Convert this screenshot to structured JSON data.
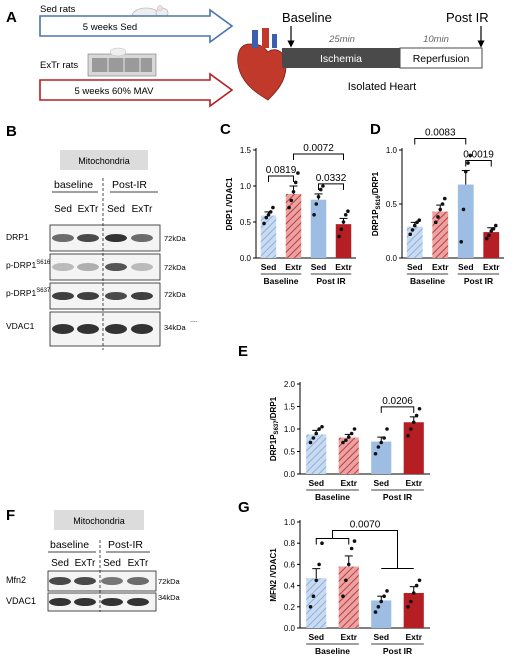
{
  "colors": {
    "sed": "#9dbde3",
    "sed_light": "#c9dbf1",
    "extr_dark": "#b51f24",
    "extr_light": "#d97070",
    "bar_stroke": "#6a8fc0"
  },
  "panelA": {
    "label": "A",
    "sed_rats": "Sed rats",
    "sed_arrow": "5 weeks Sed",
    "extr_rats": "ExTr rats",
    "extr_arrow": "5 weeks 60% MAV",
    "baseline": "Baseline",
    "post_ir": "Post IR",
    "ischemia_time": "25min",
    "reperfusion_time": "10min",
    "ischemia": "Ischemia",
    "reperfusion": "Reperfusion",
    "isolated_heart": "Isolated Heart",
    "icons": [
      "rat-icon",
      "treadmill-icon",
      "heart-icon"
    ]
  },
  "panelB": {
    "label": "B",
    "header": "Mitochondria",
    "group1": "baseline",
    "group2": "Post-IR",
    "lanes": [
      "Sed",
      "ExTr",
      "Sed",
      "ExTr"
    ],
    "blots": [
      {
        "label": "DRP1",
        "sup": "",
        "kda": "72kDa"
      },
      {
        "label": "p-DRP1",
        "sup": "S616",
        "kda": "72kDa"
      },
      {
        "label": "p-DRP1",
        "sup": "S637",
        "kda": "72kDa"
      },
      {
        "label": "VDAC1",
        "sup": "",
        "kda": "34kDa"
      }
    ],
    "dots": "...."
  },
  "panelF": {
    "label": "F",
    "header": "Mitochondria",
    "group1": "baseline",
    "group2": "Post-IR",
    "lanes": [
      "Sed",
      "ExTr",
      "Sed",
      "ExTr"
    ],
    "blots": [
      {
        "label": "Mfn2",
        "kda": "72kDa"
      },
      {
        "label": "VDAC1",
        "kda": "34kDa"
      }
    ]
  },
  "chart_data": [
    {
      "panel": "C",
      "type": "bar",
      "ylabel": "DRP1 /VDAC1",
      "ylim": [
        0,
        1.5
      ],
      "yticks": [
        "0.0",
        "0.5",
        "1.0",
        "1.5"
      ],
      "categories": [
        "Sed",
        "Extr",
        "Sed",
        "Extr"
      ],
      "groups": [
        "Baseline",
        "Post IR"
      ],
      "values": [
        0.59,
        0.89,
        0.81,
        0.47
      ],
      "errors": [
        0.05,
        0.11,
        0.08,
        0.08
      ],
      "points": [
        [
          0.48,
          0.56,
          0.6,
          0.64,
          0.7
        ],
        [
          0.7,
          0.8,
          0.92,
          1.05,
          1.18
        ],
        [
          0.6,
          0.75,
          0.85,
          0.95,
          1.0
        ],
        [
          0.3,
          0.4,
          0.5,
          0.6,
          0.65
        ]
      ],
      "comparisons": [
        {
          "from": 0,
          "to": 1,
          "label": "0.0819"
        },
        {
          "from": 1,
          "to": 3,
          "label": "0.0072"
        },
        {
          "from": 2,
          "to": 3,
          "label": "0.0332"
        }
      ]
    },
    {
      "panel": "D",
      "type": "bar",
      "ylabel": "DRP1P",
      "ylabel_sub": "S616",
      "ylabel_end": "/DRP1",
      "ylim": [
        0,
        1.0
      ],
      "yticks": [
        "0.0",
        "0.5",
        "1.0"
      ],
      "categories": [
        "Sed",
        "Extr",
        "Sed",
        "Extr"
      ],
      "groups": [
        "Baseline",
        "Post IR"
      ],
      "values": [
        0.29,
        0.43,
        0.68,
        0.24
      ],
      "errors": [
        0.04,
        0.06,
        0.13,
        0.04
      ],
      "points": [
        [
          0.22,
          0.26,
          0.3,
          0.33,
          0.35
        ],
        [
          0.33,
          0.38,
          0.45,
          0.5,
          0.55
        ],
        [
          0.15,
          0.45,
          0.8,
          0.88,
          0.95
        ],
        [
          0.18,
          0.21,
          0.25,
          0.27,
          0.3
        ]
      ],
      "comparisons": [
        {
          "from": 0,
          "to": 2,
          "label": "0.0083"
        },
        {
          "from": 2,
          "to": 3,
          "label": "0.0019"
        }
      ]
    },
    {
      "panel": "E",
      "type": "bar",
      "ylabel": "DRP1P",
      "ylabel_sub": "S637",
      "ylabel_end": "/DRP1",
      "ylim": [
        0,
        2.0
      ],
      "yticks": [
        "0.0",
        "0.5",
        "1.0",
        "1.5",
        "2.0"
      ],
      "categories": [
        "Sed",
        "Extr",
        "Sed",
        "Extr"
      ],
      "groups": [
        "Baseline",
        "Post IR"
      ],
      "values": [
        0.88,
        0.81,
        0.72,
        1.15
      ],
      "errors": [
        0.09,
        0.07,
        0.1,
        0.12
      ],
      "points": [
        [
          0.7,
          0.8,
          0.9,
          1.0,
          1.05
        ],
        [
          0.7,
          0.75,
          0.82,
          0.9,
          1.0
        ],
        [
          0.45,
          0.6,
          0.7,
          0.8,
          1.0
        ],
        [
          0.85,
          1.0,
          1.15,
          1.3,
          1.45
        ]
      ],
      "comparisons": [
        {
          "from": 2,
          "to": 3,
          "label": "0.0206"
        }
      ]
    },
    {
      "panel": "G",
      "type": "bar",
      "ylabel": "MFN2 /VDAC1",
      "ylim": [
        0,
        1.0
      ],
      "yticks": [
        "0.0",
        "0.2",
        "0.4",
        "0.6",
        "0.8",
        "1.0"
      ],
      "categories": [
        "Sed",
        "Extr",
        "Sed",
        "Extr"
      ],
      "groups": [
        "Baseline",
        "Post IR"
      ],
      "values": [
        0.47,
        0.58,
        0.26,
        0.33
      ],
      "errors": [
        0.09,
        0.1,
        0.04,
        0.06
      ],
      "points": [
        [
          0.2,
          0.3,
          0.45,
          0.6,
          0.8
        ],
        [
          0.3,
          0.45,
          0.6,
          0.75,
          0.82
        ],
        [
          0.15,
          0.2,
          0.25,
          0.3,
          0.35
        ],
        [
          0.2,
          0.25,
          0.33,
          0.4,
          0.45
        ]
      ],
      "comparisons": [
        {
          "from": 0,
          "to": 2,
          "label": "0.0070",
          "bracket": "group"
        }
      ]
    }
  ]
}
